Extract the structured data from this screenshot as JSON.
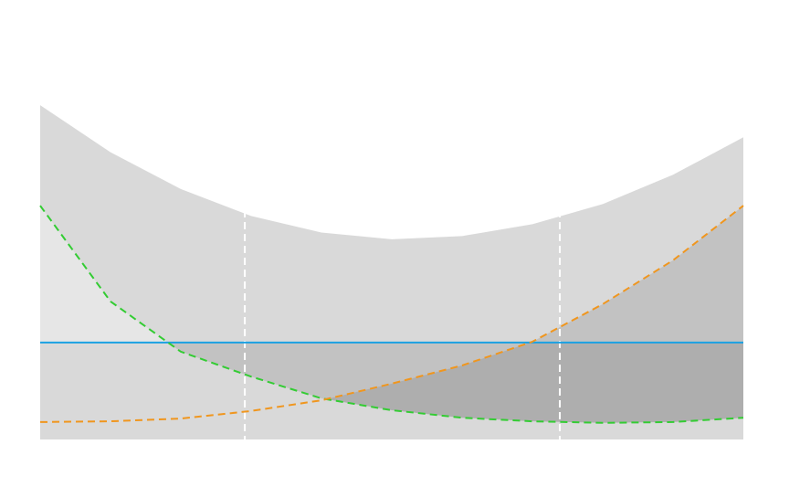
{
  "chart_data": {
    "type": "line",
    "x": [
      0,
      0.1,
      0.2,
      0.3,
      0.4,
      0.5,
      0.6,
      0.7,
      0.8,
      0.9,
      1
    ],
    "xlim": [
      0,
      1
    ],
    "ylim": [
      0,
      1
    ],
    "vlines": [
      0.291,
      0.739
    ],
    "hline": {
      "value": 0.245,
      "color": "#1ba1e2"
    },
    "series": [
      {
        "color": "#d9d9d9",
        "fill": true,
        "values": [
          0.845,
          0.726,
          0.633,
          0.565,
          0.523,
          0.506,
          0.514,
          0.544,
          0.595,
          0.669,
          0.764
        ]
      },
      {
        "color": "#33cc33",
        "dashed": true,
        "values": [
          0.591,
          0.349,
          0.222,
          0.159,
          0.104,
          0.074,
          0.055,
          0.046,
          0.042,
          0.044,
          0.055
        ]
      },
      {
        "color": "#f0961e",
        "dashed": true,
        "values": [
          0.044,
          0.046,
          0.053,
          0.072,
          0.099,
          0.141,
          0.187,
          0.247,
          0.342,
          0.453,
          0.591
        ]
      }
    ]
  }
}
